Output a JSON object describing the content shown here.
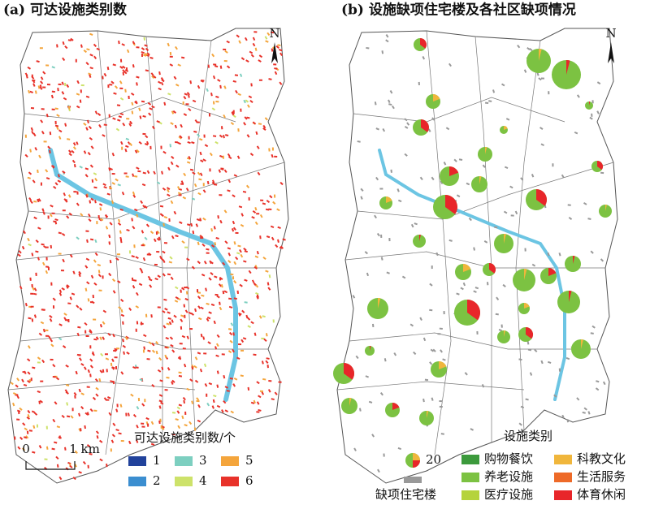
{
  "panel_a": {
    "title": "(a) 可达设施类别数",
    "north": "N",
    "scale_bar": {
      "start": "0",
      "end": "1 km"
    },
    "legend": {
      "title": "可达设施类别数/个",
      "items": [
        {
          "label": "1",
          "color": "#21429b"
        },
        {
          "label": "2",
          "color": "#3b8ed0"
        },
        {
          "label": "3",
          "color": "#7dcfc0"
        },
        {
          "label": "4",
          "color": "#cde26a"
        },
        {
          "label": "5",
          "color": "#f4a53c"
        },
        {
          "label": "6",
          "color": "#e8322a"
        }
      ]
    }
  },
  "panel_b": {
    "title": "(b) 设施缺项住宅楼及各社区缺项情况",
    "north": "N",
    "legend": {
      "title": "设施类别",
      "pie_size_label": "20",
      "building_label": "缺项住宅楼",
      "items": [
        {
          "label": "购物餐饮",
          "color": "#3c9a3c"
        },
        {
          "label": "养老设施",
          "color": "#7cc242"
        },
        {
          "label": "医疗设施",
          "color": "#b5d33c"
        },
        {
          "label": "科教文化",
          "color": "#f0b63c"
        },
        {
          "label": "生活服务",
          "color": "#ee6a28"
        },
        {
          "label": "体育休闲",
          "color": "#e8262a"
        }
      ]
    }
  }
}
